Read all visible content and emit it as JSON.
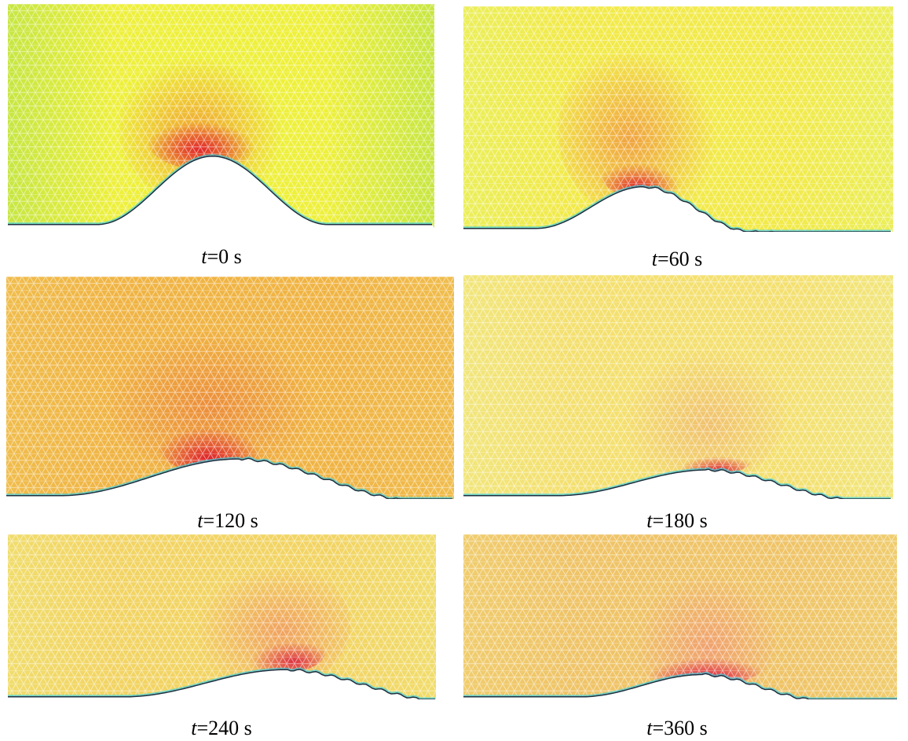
{
  "panels": [
    {
      "caption": {
        "variable": "t",
        "text": "=0 s"
      }
    },
    {
      "caption": {
        "variable": "t",
        "text": "=60 s"
      }
    },
    {
      "caption": {
        "variable": "t",
        "text": "=120 s"
      }
    },
    {
      "caption": {
        "variable": "t",
        "text": "=180 s"
      }
    },
    {
      "caption": {
        "variable": "t",
        "text": "=240 s"
      }
    },
    {
      "caption": {
        "variable": "t",
        "text": "=360 s"
      }
    }
  ]
}
